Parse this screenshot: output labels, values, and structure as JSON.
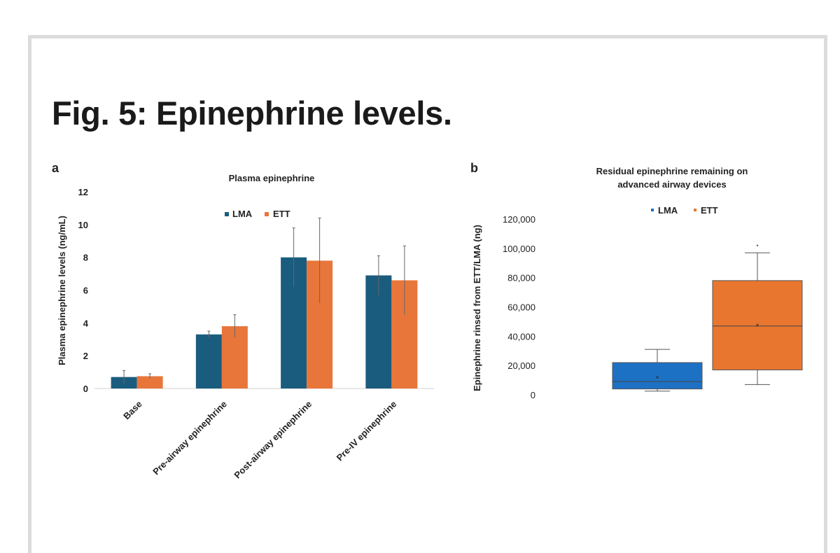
{
  "figure": {
    "title": "Fig. 5: Epinephrine levels."
  },
  "panels": {
    "a_label": "a",
    "b_label": "b"
  },
  "colors": {
    "LMA_a": "#1a5c7e",
    "ETT_a": "#e8763a",
    "LMA_b": "#1d71c4",
    "ETT_b": "#e8762f",
    "whisker": "#555555"
  },
  "chart_data": [
    {
      "panel": "a",
      "type": "bar",
      "title": "Plasma epinephrine",
      "xlabel": "",
      "ylabel": "Plasma epinephrine levels (ng/mL)",
      "ylim": [
        0,
        12
      ],
      "yticks": [
        0,
        2,
        4,
        6,
        8,
        10,
        12
      ],
      "categories": [
        "Base",
        "Pre-airway epinephrine",
        "Post-airway epinephrine",
        "Pre-IV epinephrine"
      ],
      "legend_position": "top-center",
      "grid": false,
      "series": [
        {
          "name": "LMA",
          "values": [
            0.7,
            3.3,
            8.0,
            6.9
          ],
          "error": [
            0.4,
            0.2,
            1.8,
            1.2
          ]
        },
        {
          "name": "ETT",
          "values": [
            0.75,
            3.8,
            7.8,
            6.6
          ],
          "error": [
            0.15,
            0.7,
            2.6,
            2.1
          ]
        }
      ]
    },
    {
      "panel": "b",
      "type": "box",
      "title": "Residual epinephrine remaining on advanced airway devices",
      "title_lines": [
        "Residual epinephrine remaining on",
        "advanced airway devices"
      ],
      "xlabel": "",
      "ylabel": "Epinephrine rinsed from ETT/LMA (ng)",
      "ylim": [
        0,
        120000
      ],
      "yticks": [
        0,
        20000,
        40000,
        60000,
        80000,
        100000,
        120000
      ],
      "ytick_labels": [
        "0",
        "20,000",
        "40,000",
        "60,000",
        "80,000",
        "100,000",
        "120,000"
      ],
      "legend_position": "top-center",
      "grid": false,
      "series": [
        {
          "name": "LMA",
          "min": 2500,
          "q1": 4000,
          "median": 9000,
          "q3": 22000,
          "max": 31000,
          "mean": 12000,
          "outliers": []
        },
        {
          "name": "ETT",
          "min": 7000,
          "q1": 17000,
          "median": 47000,
          "q3": 78000,
          "max": 97000,
          "mean": 47500,
          "outliers": [
            102000
          ]
        }
      ]
    }
  ]
}
